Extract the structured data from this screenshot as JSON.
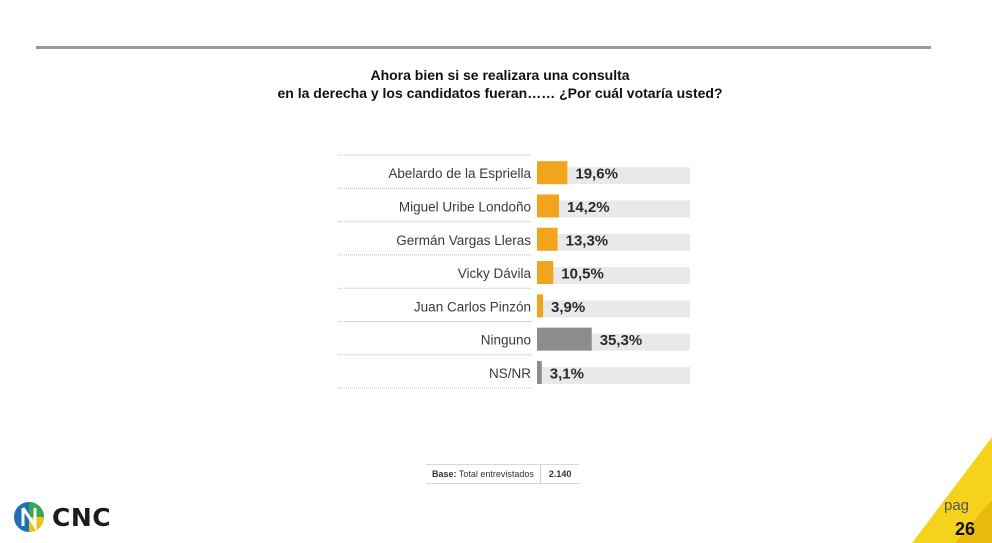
{
  "title": {
    "line1": "Ahora bien si se realizara una consulta",
    "line2": "en la derecha y los candidatos fueran……  ¿Por cuál votaría usted?"
  },
  "chart_data": {
    "type": "bar",
    "orientation": "horizontal",
    "categories": [
      "Abelardo de la Espriella",
      "Miguel Uribe Londoño",
      "Germán Vargas Lleras",
      "Vicky Dávila",
      "Juan Carlos Pinzón",
      "Ninguno",
      "NS/NR"
    ],
    "values": [
      19.6,
      14.2,
      13.3,
      10.5,
      3.9,
      35.3,
      3.1
    ],
    "value_labels": [
      "19,6%",
      "14,2%",
      "13,3%",
      "10,5%",
      "3,9%",
      "35,3%",
      "3,1%"
    ],
    "bar_colors": [
      "#f2a41c",
      "#f2a41c",
      "#f2a41c",
      "#f2a41c",
      "#f2a41c",
      "#8c8c8c",
      "#8c8c8c"
    ],
    "xlim": [
      0,
      100
    ],
    "title": "",
    "xlabel": "",
    "ylabel": ""
  },
  "base": {
    "label": "Base:",
    "description": "Total entrevistados",
    "value": "2.140"
  },
  "logo": {
    "text": "CNC",
    "icon": "cnc-logo-icon"
  },
  "page": {
    "label": "pag",
    "number": "26"
  },
  "colors": {
    "accent_orange": "#f2a41c",
    "gray_bar": "#8c8c8c",
    "track": "#e9e9e9",
    "corner_yellow": "#f5d31c"
  }
}
